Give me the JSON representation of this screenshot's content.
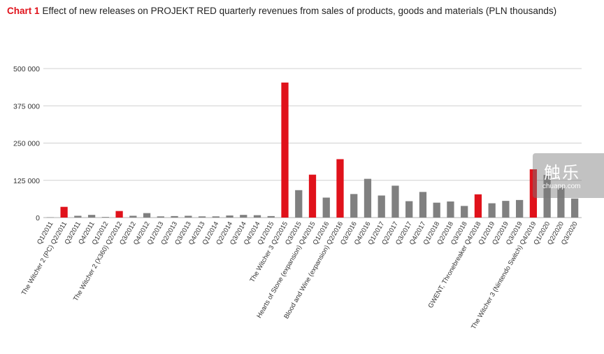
{
  "title": {
    "lead": "Chart 1",
    "text": "Effect of new releases on PROJEKT RED quarterly revenues from sales of products, goods and materials (PLN thousands)"
  },
  "watermark": {
    "main": "触乐",
    "sub": "chuapp.com"
  },
  "colors": {
    "release": "#e0121b",
    "regular": "#808080",
    "grid": "#d0d0d0",
    "axis": "#b0b0b0"
  },
  "chart_data": {
    "type": "bar",
    "title": "Effect of new releases on PROJEKT RED quarterly revenues from sales of products, goods and materials (PLN thousands)",
    "xlabel": "",
    "ylabel": "",
    "ylim": [
      0,
      500000
    ],
    "yticks": [
      0,
      125000,
      250000,
      375000,
      500000
    ],
    "ytick_labels": [
      "0",
      "125 000",
      "250 000",
      "375 000",
      "500 000"
    ],
    "grid": true,
    "categories": [
      "Q1/2011",
      "The Witcher 2 (PC) Q2/2011",
      "Q3/2011",
      "Q4/2011",
      "Q1/2012",
      "The Witcher 2 (X360) Q2/2012",
      "Q3/2012",
      "Q4/2012",
      "Q1/2013",
      "Q2/2013",
      "Q3/2013",
      "Q4/2013",
      "Q1/2014",
      "Q2/2014",
      "Q3/2014",
      "Q4/2014",
      "Q1/2015",
      "The Witcher 3 Q2/2015",
      "Q3/2015",
      "Hearts of Stone (expansion) Q4/2015",
      "Q1/2016",
      "Blood and Wine (expansion) Q2/2016",
      "Q3/2016",
      "Q4/2016",
      "Q1/2017",
      "Q2/2017",
      "Q3/2017",
      "Q4/2017",
      "Q1/2018",
      "Q2/2018",
      "Q3/2018",
      "GWENT, Thronebreaker Q4/2018",
      "Q1/2019",
      "Q2/2019",
      "Q3/2019",
      "The Witcher 3 (Nintendo Switch) Q4/2019",
      "Q1/2020",
      "Q2/2020",
      "Q3/2020"
    ],
    "values": [
      1000,
      36000,
      6000,
      9000,
      2000,
      22000,
      6000,
      15000,
      4000,
      5000,
      6000,
      4000,
      4000,
      7000,
      9000,
      8000,
      5000,
      453000,
      92000,
      144000,
      67000,
      196000,
      79000,
      130000,
      74000,
      107000,
      55000,
      86000,
      50000,
      54000,
      39000,
      78000,
      48000,
      56000,
      59000,
      162000,
      143000,
      102000,
      64000
    ],
    "highlight": [
      false,
      true,
      false,
      false,
      false,
      true,
      false,
      false,
      false,
      false,
      false,
      false,
      false,
      false,
      false,
      false,
      false,
      true,
      false,
      true,
      false,
      true,
      false,
      false,
      false,
      false,
      false,
      false,
      false,
      false,
      false,
      true,
      false,
      false,
      false,
      true,
      false,
      false,
      false
    ]
  }
}
